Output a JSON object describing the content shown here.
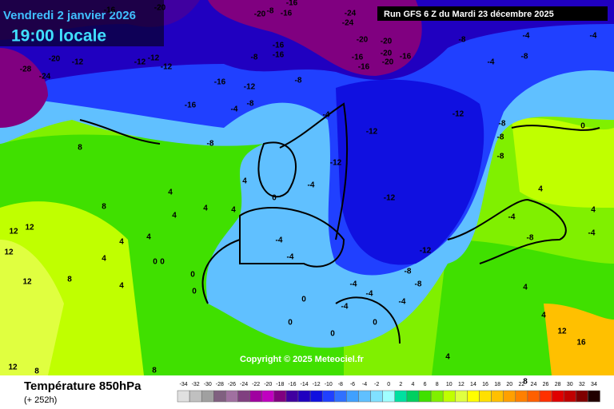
{
  "header": {
    "date": "Vendredi 2 janvier 2026",
    "time": "19:00 locale",
    "run": "Run GFS 6 Z du Mardi 23 décembre 2025"
  },
  "footer": {
    "title": "Température 850hPa",
    "lead": "(+ 252h)",
    "copyright": "Copyright © 2025 Meteociel.fr"
  },
  "scale": [
    {
      "value": -34,
      "color": "#e0e0e0"
    },
    {
      "value": -32,
      "color": "#c0c0c0"
    },
    {
      "value": -30,
      "color": "#a0a0a0"
    },
    {
      "value": -28,
      "color": "#806080"
    },
    {
      "value": -26,
      "color": "#a070a0"
    },
    {
      "value": -24,
      "color": "#804080"
    },
    {
      "value": -22,
      "color": "#a000a0"
    },
    {
      "value": -20,
      "color": "#c000c0"
    },
    {
      "value": -18,
      "color": "#800080"
    },
    {
      "value": -16,
      "color": "#4000a0"
    },
    {
      "value": -14,
      "color": "#2000c0"
    },
    {
      "value": -12,
      "color": "#1010e0"
    },
    {
      "value": -10,
      "color": "#2040ff"
    },
    {
      "value": -8,
      "color": "#3070ff"
    },
    {
      "value": -6,
      "color": "#40a0ff"
    },
    {
      "value": -4,
      "color": "#60c0ff"
    },
    {
      "value": -2,
      "color": "#80e0ff"
    },
    {
      "value": 0,
      "color": "#a0ffff"
    },
    {
      "value": 2,
      "color": "#00e0a0"
    },
    {
      "value": 4,
      "color": "#00d060"
    },
    {
      "value": 6,
      "color": "#40e000"
    },
    {
      "value": 8,
      "color": "#80f000"
    },
    {
      "value": 10,
      "color": "#c0ff00"
    },
    {
      "value": 12,
      "color": "#e0ff40"
    },
    {
      "value": 14,
      "color": "#ffff00"
    },
    {
      "value": 16,
      "color": "#ffe000"
    },
    {
      "value": 18,
      "color": "#ffc000"
    },
    {
      "value": 20,
      "color": "#ffa000"
    },
    {
      "value": 22,
      "color": "#ff8000"
    },
    {
      "value": 24,
      "color": "#ff6000"
    },
    {
      "value": 26,
      "color": "#ff3000"
    },
    {
      "value": 28,
      "color": "#e00000"
    },
    {
      "value": 30,
      "color": "#c00000"
    },
    {
      "value": 32,
      "color": "#800000"
    },
    {
      "value": 34,
      "color": "#200000"
    }
  ],
  "map_labels": [
    -16,
    -20,
    -20,
    -16,
    -8,
    -16,
    -24,
    -24,
    -20,
    -20,
    -16,
    -20,
    -16,
    -20,
    -16,
    -8,
    -4,
    -8,
    -4,
    -4,
    -12,
    -12,
    -12,
    -12,
    -8,
    -16,
    -16,
    -28,
    -24,
    -20,
    -16,
    -12,
    -8,
    -16,
    -4,
    -8,
    -4,
    -12,
    -12,
    -8,
    -8,
    -8,
    -8,
    -12,
    -12,
    -4,
    -4,
    -12,
    -8,
    -8,
    -4,
    -4,
    -4,
    -4,
    -4,
    0,
    0,
    0,
    0,
    0,
    4,
    4,
    4,
    4,
    4,
    4,
    4,
    4,
    4,
    8,
    8,
    12,
    12,
    12,
    12,
    8,
    0,
    0,
    0,
    0,
    4,
    4,
    12,
    16,
    4,
    8,
    8,
    8,
    12,
    0,
    4,
    -4,
    -8,
    -4,
    4
  ]
}
